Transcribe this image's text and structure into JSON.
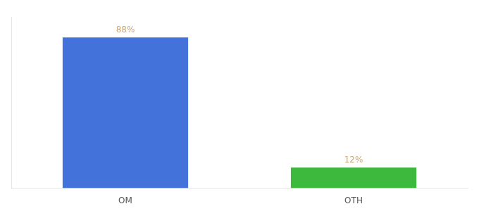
{
  "chart_data": {
    "type": "bar",
    "categories": [
      "OM",
      "OTH"
    ],
    "values": [
      88,
      12
    ],
    "value_labels": [
      "88%",
      "12%"
    ],
    "colors": [
      "#4472db",
      "#3dba3d"
    ],
    "ylim": [
      0,
      100
    ],
    "grid": false,
    "tick_labels": "x",
    "data_labels": true
  }
}
